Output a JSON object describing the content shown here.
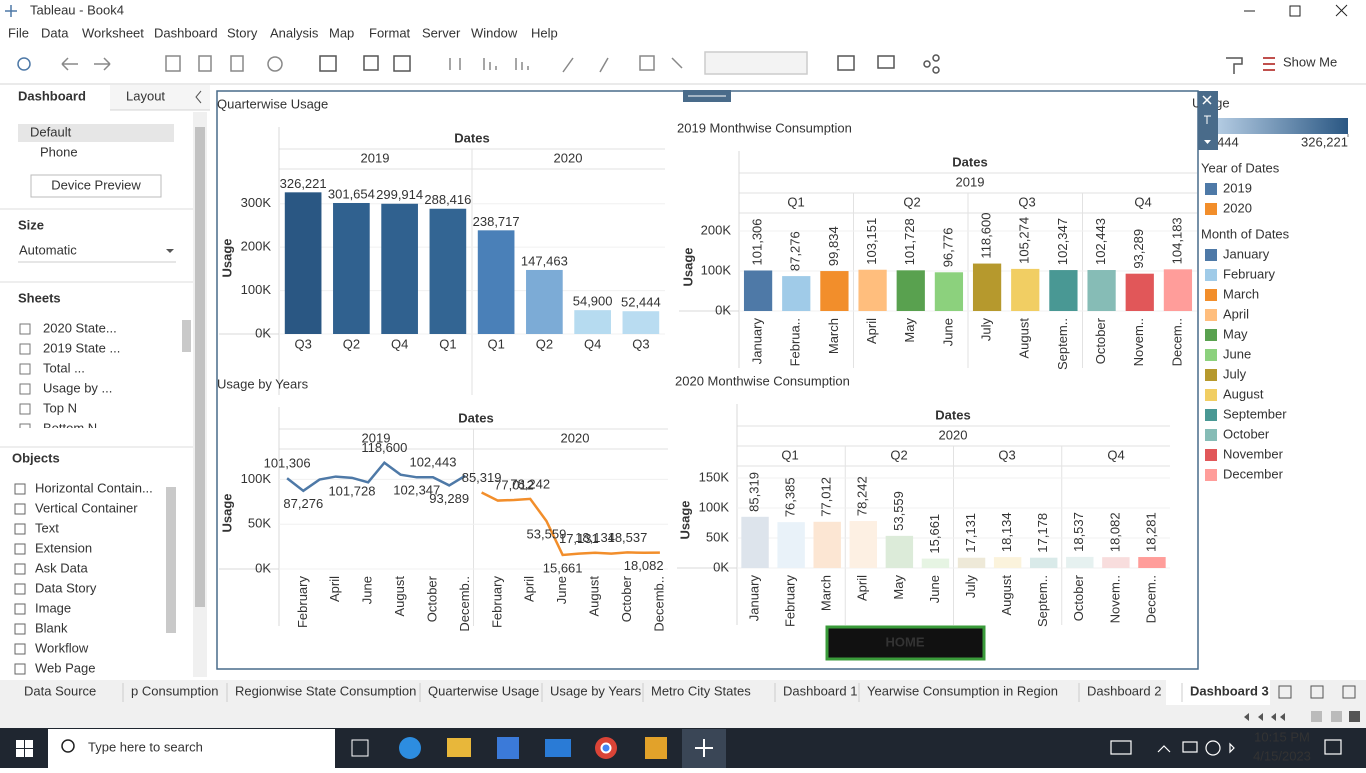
{
  "window": {
    "title": "Tableau - Book4"
  },
  "menu": [
    "File",
    "Data",
    "Worksheet",
    "Dashboard",
    "Story",
    "Analysis",
    "Map",
    "Format",
    "Server",
    "Window",
    "Help"
  ],
  "toolbar": {
    "show_me": "Show Me"
  },
  "side_panel": {
    "tabs": [
      "Dashboard",
      "Layout"
    ],
    "devices": [
      "Default",
      "Phone"
    ],
    "device_preview": "Device Preview",
    "size_heading": "Size",
    "size_value": "Automatic",
    "sheets_heading": "Sheets",
    "sheets": [
      "2020 State...",
      "2019 State ...",
      "Total ...",
      "Usage by ...",
      "Top N",
      "Bottom N"
    ],
    "objects_heading": "Objects",
    "objects": [
      "Horizontal Contain...",
      "Vertical Container",
      "Text",
      "Extension",
      "Ask Data",
      "Data Story",
      "Image",
      "Blank",
      "Workflow",
      "Web Page"
    ]
  },
  "dashboard": {
    "home_button": "HOME"
  },
  "legends": {
    "usage": {
      "title": "Usage",
      "range": [
        {
          "value": 52444,
          "label": "52,444"
        },
        {
          "value": 326221,
          "label": "326,221"
        }
      ],
      "colors": [
        "#c6dbef",
        "#2a5783"
      ]
    },
    "year": {
      "title": "Year of Dates",
      "items": [
        {
          "name": "2019",
          "color": "#4e79a7"
        },
        {
          "name": "2020",
          "color": "#f28e2b"
        }
      ]
    },
    "month": {
      "title": "Month of Dates",
      "items": [
        {
          "name": "January",
          "color": "#4e79a7"
        },
        {
          "name": "February",
          "color": "#a0cbe8"
        },
        {
          "name": "March",
          "color": "#f28e2b"
        },
        {
          "name": "April",
          "color": "#ffbe7d"
        },
        {
          "name": "May",
          "color": "#59a14f"
        },
        {
          "name": "June",
          "color": "#8cd17d"
        },
        {
          "name": "July",
          "color": "#b6992d"
        },
        {
          "name": "August",
          "color": "#f1ce63"
        },
        {
          "name": "September",
          "color": "#499894"
        },
        {
          "name": "October",
          "color": "#86bcb6"
        },
        {
          "name": "November",
          "color": "#e15759"
        },
        {
          "name": "December",
          "color": "#ff9d9a"
        }
      ]
    }
  },
  "sheet_tabs": [
    "Data Source",
    "p Consumption",
    "Regionwise State Consumption",
    "Quarterwise Usage",
    "Usage by Years",
    "Metro City States",
    "Dashboard 1",
    "Yearwise Consumption in Region",
    "Dashboard 2",
    "Dashboard 3"
  ],
  "taskbar": {
    "search": "Type here to search",
    "time": "10:15 PM",
    "date": "4/15/2023"
  },
  "chart_data": [
    {
      "type": "bar",
      "title": "Quarterwise Usage",
      "header": "Dates",
      "groups": [
        "2019",
        "2020"
      ],
      "y_label": "Usage",
      "categories": [
        "Q3",
        "Q2",
        "Q4",
        "Q1",
        "Q1",
        "Q2",
        "Q4",
        "Q3"
      ],
      "values": [
        326221,
        301654,
        299914,
        288416,
        238717,
        147463,
        54900,
        52444
      ],
      "value_labels": [
        "326,221",
        "301,654",
        "299,914",
        "288,416",
        "238,717",
        "147,463",
        "54,900",
        "52,444"
      ],
      "colors": [
        "#2a5783",
        "#30618f",
        "#30618f",
        "#336593",
        "#4a80b8",
        "#7cabd6",
        "#b6dbf0",
        "#b9dcf1"
      ],
      "ylim": [
        0,
        350000
      ],
      "yticks": [
        {
          "value": 0,
          "label": "0K"
        },
        {
          "value": 100000,
          "label": "100K"
        },
        {
          "value": 200000,
          "label": "200K"
        },
        {
          "value": 300000,
          "label": "300K"
        }
      ]
    },
    {
      "type": "bar",
      "title": "2019 Monthwise Consumption",
      "header": "Dates",
      "groups": [
        "2019"
      ],
      "subgroups": [
        "Q1",
        "Q2",
        "Q3",
        "Q4"
      ],
      "y_label": "Usage",
      "categories": [
        "January",
        "Februa..",
        "March",
        "April",
        "May",
        "June",
        "July",
        "August",
        "Septem..",
        "October",
        "Novem..",
        "Decem.."
      ],
      "values": [
        101306,
        87276,
        99834,
        103151,
        101728,
        96776,
        118600,
        105274,
        102347,
        102443,
        93289,
        104183
      ],
      "value_labels": [
        "101,306",
        "87,276",
        "99,834",
        "103,151",
        "101,728",
        "96,776",
        "118,600",
        "105,274",
        "102,347",
        "102,443",
        "93,289",
        "104,183"
      ],
      "colors": [
        "#4e79a7",
        "#a0cbe8",
        "#f28e2b",
        "#ffbe7d",
        "#59a14f",
        "#8cd17d",
        "#b6992d",
        "#f1ce63",
        "#499894",
        "#86bcb6",
        "#e15759",
        "#ff9d9a"
      ],
      "ylim": [
        0,
        220000
      ],
      "yticks": [
        {
          "value": 0,
          "label": "0K"
        },
        {
          "value": 100000,
          "label": "100K"
        },
        {
          "value": 200000,
          "label": "200K"
        }
      ]
    },
    {
      "type": "line",
      "title": "Usage by Years",
      "header": "Dates",
      "groups": [
        "2019",
        "2020"
      ],
      "y_label": "Usage",
      "categories": [
        null,
        "February",
        null,
        "April",
        null,
        "June",
        null,
        "August",
        null,
        "October",
        null,
        "Decemb.."
      ],
      "series": [
        {
          "name": "2019",
          "color": "#4e79a7",
          "values": [
            101306,
            87276,
            99834,
            103151,
            101728,
            96776,
            118600,
            105274,
            102347,
            102443,
            93289,
            104183
          ],
          "value_labels": [
            "101,306",
            "87,276",
            null,
            null,
            "101,728",
            null,
            "118,600",
            null,
            "102,347",
            "102,443",
            "93,289",
            null
          ]
        },
        {
          "name": "2020",
          "color": "#f28e2b",
          "values": [
            85319,
            76385,
            77012,
            78242,
            53559,
            15661,
            17131,
            18134,
            17178,
            18537,
            18082,
            18281
          ],
          "value_labels": [
            "85,319",
            null,
            "77,012",
            "78,242",
            "53,559",
            "15,661",
            "17,131",
            "18,134",
            null,
            "18,537",
            "18,082",
            null
          ]
        }
      ],
      "ylim": [
        0,
        125000
      ],
      "yticks": [
        {
          "value": 0,
          "label": "0K"
        },
        {
          "value": 50000,
          "label": "50K"
        },
        {
          "value": 100000,
          "label": "100K"
        }
      ]
    },
    {
      "type": "bar",
      "title": "2020 Monthwise Consumption",
      "header": "Dates",
      "groups": [
        "2020"
      ],
      "subgroups": [
        "Q1",
        "Q2",
        "Q3",
        "Q4"
      ],
      "y_label": "Usage",
      "categories": [
        "January",
        "February",
        "March",
        "April",
        "May",
        "June",
        "July",
        "August",
        "Septem..",
        "October",
        "Novem..",
        "Decem.."
      ],
      "values": [
        85319,
        76385,
        77012,
        78242,
        53559,
        15661,
        17131,
        18134,
        17178,
        18537,
        18082,
        18281
      ],
      "value_labels": [
        "85,319",
        "76,385",
        "77,012",
        "78,242",
        "53,559",
        "15,661",
        "17,131",
        "18,134",
        "17,178",
        "18,537",
        "18,082",
        "18,281"
      ],
      "colors": [
        "#dde4ec",
        "#e9f2f9",
        "#fce6d3",
        "#fdf0e3",
        "#dcebd9",
        "#e6f4e3",
        "#eee9d8",
        "#fbf3dc",
        "#d9eae9",
        "#e6f1f0",
        "#f8dddd",
        "#ff9d9a"
      ],
      "ylim": [
        0,
        160000
      ],
      "yticks": [
        {
          "value": 0,
          "label": "0K"
        },
        {
          "value": 50000,
          "label": "50K"
        },
        {
          "value": 100000,
          "label": "100K"
        },
        {
          "value": 150000,
          "label": "150K"
        }
      ]
    }
  ]
}
